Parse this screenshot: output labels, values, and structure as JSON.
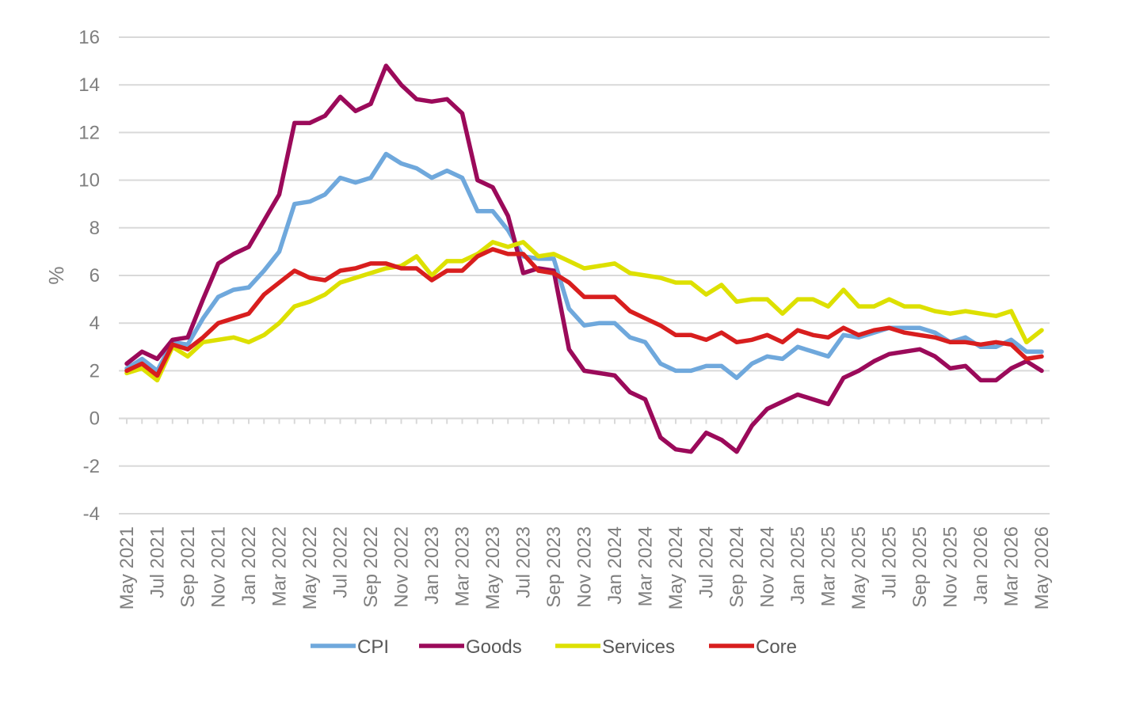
{
  "chart_data": {
    "type": "line",
    "title": "",
    "xlabel": "",
    "ylabel": "%",
    "ylim": [
      -4,
      16
    ],
    "yticks": [
      -4,
      -2,
      0,
      2,
      4,
      6,
      8,
      10,
      12,
      14,
      16
    ],
    "grid": "horizontal",
    "legend_position": "bottom",
    "x": [
      "May 2021",
      "Jun 2021",
      "Jul 2021",
      "Aug 2021",
      "Sep 2021",
      "Oct 2021",
      "Nov 2021",
      "Dec 2021",
      "Jan 2022",
      "Feb 2022",
      "Mar 2022",
      "Apr 2022",
      "May 2022",
      "Jun 2022",
      "Jul 2022",
      "Aug 2022",
      "Sep 2022",
      "Oct 2022",
      "Nov 2022",
      "Dec 2022",
      "Jan 2023",
      "Feb 2023",
      "Mar 2023",
      "Apr 2023",
      "May 2023",
      "Jun 2023",
      "Jul 2023",
      "Aug 2023",
      "Sep 2023",
      "Oct 2023",
      "Nov 2023",
      "Dec 2023",
      "Jan 2024",
      "Feb 2024",
      "Mar 2024",
      "Apr 2024",
      "May 2024",
      "Jun 2024",
      "Jul 2024",
      "Aug 2024",
      "Sep 2024",
      "Oct 2024",
      "Nov 2024",
      "Dec 2024",
      "Jan 2025",
      "Feb 2025",
      "Mar 2025",
      "Apr 2025",
      "May 2025",
      "Jun 2025",
      "Jul 2025",
      "Aug 2025",
      "Sep 2025",
      "Oct 2025",
      "Nov 2025",
      "Dec 2025",
      "Jan 2026",
      "Feb 2026",
      "Mar 2026",
      "Apr 2026",
      "May 2026"
    ],
    "x_tick_labels": [
      "May 2021",
      "Jul 2021",
      "Sep 2021",
      "Nov 2021",
      "Jan 2022",
      "Mar 2022",
      "May 2022",
      "Jul 2022",
      "Sep 2022",
      "Nov 2022",
      "Jan 2023",
      "Mar 2023",
      "May 2023",
      "Jul 2023",
      "Sep 2023",
      "Nov 2023",
      "Jan 2024",
      "Mar 2024",
      "May 2024",
      "Jul 2024",
      "Sep 2024",
      "Nov 2024",
      "Jan 2025",
      "Mar 2025",
      "May 2025",
      "Jul 2025",
      "Sep 2025",
      "Nov 2025",
      "Jan 2026",
      "Mar 2026",
      "May 2026"
    ],
    "series": [
      {
        "name": "CPI",
        "color": "#6fa8dc",
        "values": [
          2.1,
          2.5,
          2.0,
          3.2,
          3.1,
          4.2,
          5.1,
          5.4,
          5.5,
          6.2,
          7.0,
          9.0,
          9.1,
          9.4,
          10.1,
          9.9,
          10.1,
          11.1,
          10.7,
          10.5,
          10.1,
          10.4,
          10.1,
          8.7,
          8.7,
          7.9,
          6.8,
          6.7,
          6.7,
          4.6,
          3.9,
          4.0,
          4.0,
          3.4,
          3.2,
          2.3,
          2.0,
          2.0,
          2.2,
          2.2,
          1.7,
          2.3,
          2.6,
          2.5,
          3.0,
          2.8,
          2.6,
          3.5,
          3.4,
          3.6,
          3.8,
          3.8,
          3.8,
          3.6,
          3.2,
          3.4,
          3.0,
          3.0,
          3.3,
          2.8,
          2.8
        ]
      },
      {
        "name": "Goods",
        "color": "#9b0a5a",
        "values": [
          2.3,
          2.8,
          2.5,
          3.3,
          3.4,
          5.0,
          6.5,
          6.9,
          7.2,
          8.3,
          9.4,
          12.4,
          12.4,
          12.7,
          13.5,
          12.9,
          13.2,
          14.8,
          14.0,
          13.4,
          13.3,
          13.4,
          12.8,
          10.0,
          9.7,
          8.5,
          6.1,
          6.3,
          6.2,
          2.9,
          2.0,
          1.9,
          1.8,
          1.1,
          0.8,
          -0.8,
          -1.3,
          -1.4,
          -0.6,
          -0.9,
          -1.4,
          -0.3,
          0.4,
          0.7,
          1.0,
          0.8,
          0.6,
          1.7,
          2.0,
          2.4,
          2.7,
          2.8,
          2.9,
          2.6,
          2.1,
          2.2,
          1.6,
          1.6,
          2.1,
          2.4,
          2.0
        ]
      },
      {
        "name": "Services",
        "color": "#dde000",
        "values": [
          1.9,
          2.1,
          1.6,
          3.0,
          2.6,
          3.2,
          3.3,
          3.4,
          3.2,
          3.5,
          4.0,
          4.7,
          4.9,
          5.2,
          5.7,
          5.9,
          6.1,
          6.3,
          6.4,
          6.8,
          6.0,
          6.6,
          6.6,
          6.9,
          7.4,
          7.2,
          7.4,
          6.8,
          6.9,
          6.6,
          6.3,
          6.4,
          6.5,
          6.1,
          6.0,
          5.9,
          5.7,
          5.7,
          5.2,
          5.6,
          4.9,
          5.0,
          5.0,
          4.4,
          5.0,
          5.0,
          4.7,
          5.4,
          4.7,
          4.7,
          5.0,
          4.7,
          4.7,
          4.5,
          4.4,
          4.5,
          4.4,
          4.3,
          4.5,
          3.2,
          3.7
        ]
      },
      {
        "name": "Core",
        "color": "#d81e1e",
        "values": [
          2.0,
          2.3,
          1.8,
          3.1,
          2.9,
          3.4,
          4.0,
          4.2,
          4.4,
          5.2,
          5.7,
          6.2,
          5.9,
          5.8,
          6.2,
          6.3,
          6.5,
          6.5,
          6.3,
          6.3,
          5.8,
          6.2,
          6.2,
          6.8,
          7.1,
          6.9,
          6.9,
          6.2,
          6.1,
          5.7,
          5.1,
          5.1,
          5.1,
          4.5,
          4.2,
          3.9,
          3.5,
          3.5,
          3.3,
          3.6,
          3.2,
          3.3,
          3.5,
          3.2,
          3.7,
          3.5,
          3.4,
          3.8,
          3.5,
          3.7,
          3.8,
          3.6,
          3.5,
          3.4,
          3.2,
          3.2,
          3.1,
          3.2,
          3.1,
          2.5,
          2.6
        ]
      }
    ]
  },
  "colors": {
    "gridline": "#d9d9d9",
    "axis_text": "#7f7f7f",
    "legend_text": "#595959"
  }
}
